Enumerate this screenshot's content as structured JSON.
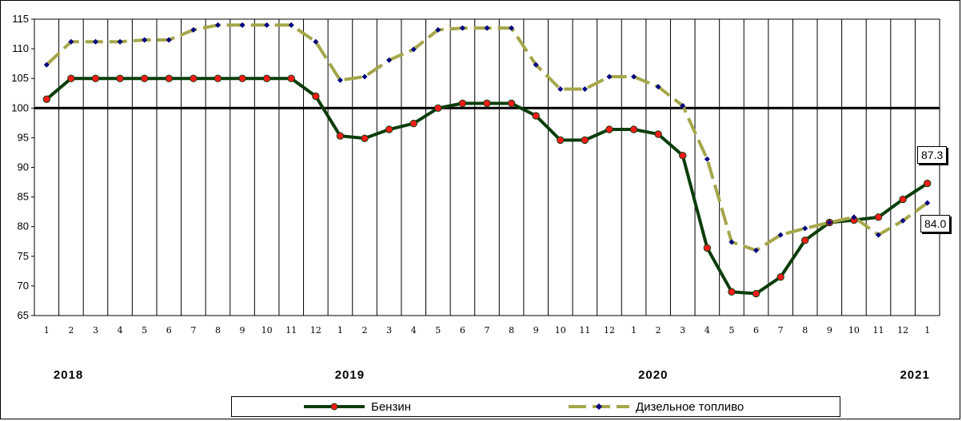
{
  "chart_data": {
    "type": "line",
    "ylim": [
      65,
      115
    ],
    "yticks": [
      65,
      70,
      75,
      80,
      85,
      90,
      95,
      100,
      105,
      110,
      115
    ],
    "reference_line": 100,
    "categories": [
      "1",
      "2",
      "3",
      "4",
      "5",
      "6",
      "7",
      "8",
      "9",
      "10",
      "11",
      "12",
      "1",
      "2",
      "3",
      "4",
      "5",
      "6",
      "7",
      "8",
      "9",
      "10",
      "11",
      "12",
      "1",
      "2",
      "3",
      "4",
      "5",
      "6",
      "7",
      "8",
      "9",
      "10",
      "11",
      "12",
      "1"
    ],
    "year_labels": [
      {
        "label": "2018",
        "index": 1
      },
      {
        "label": "2019",
        "index": 12.5
      },
      {
        "label": "2020",
        "index": 24.9
      },
      {
        "label": "2021",
        "index": 35.6
      }
    ],
    "series": [
      {
        "name": "Бензин",
        "color": "#0b3d0b",
        "marker_color": "#ff1a1a",
        "values": [
          101.5,
          105,
          105,
          105,
          105,
          105,
          105,
          105,
          105,
          105,
          105,
          102,
          95.3,
          94.9,
          96.4,
          97.4,
          100,
          100.8,
          100.8,
          100.8,
          98.7,
          94.6,
          94.6,
          96.4,
          96.4,
          95.6,
          92,
          76.4,
          69,
          68.7,
          71.5,
          77.7,
          80.7,
          81.1,
          81.6,
          84.6,
          87.3
        ]
      },
      {
        "name": "Дизельное топливо",
        "color": "#a5a64a",
        "marker_color": "#000080",
        "values": [
          107.3,
          111.2,
          111.2,
          111.2,
          111.5,
          111.5,
          113.2,
          114,
          114,
          114,
          114,
          111.2,
          104.7,
          105.3,
          108.1,
          109.9,
          113.2,
          113.5,
          113.5,
          113.5,
          107.3,
          103.2,
          103.2,
          105.3,
          105.3,
          103.6,
          100.4,
          91.4,
          77.4,
          76,
          78.6,
          79.7,
          80.7,
          81.6,
          78.6,
          81,
          84
        ]
      }
    ],
    "annotations": [
      {
        "text": "87.3",
        "series": 0,
        "index": 36
      },
      {
        "text": "84.0",
        "series": 1,
        "index": 36
      }
    ],
    "legend_position": "bottom",
    "grid": "vertical"
  }
}
